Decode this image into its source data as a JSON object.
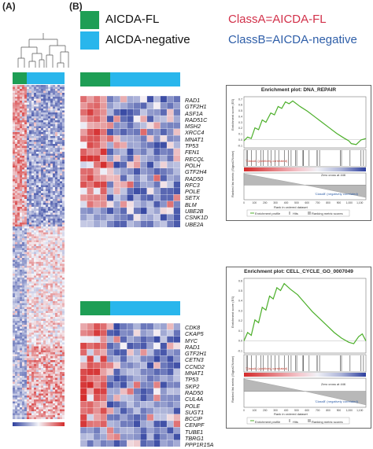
{
  "panels": {
    "a_label": "(A)",
    "b_label": "(B)"
  },
  "legend": {
    "fl_label": "AICDA-FL",
    "neg_label": "AICDA-negative",
    "fl_color": "#1e9e55",
    "neg_color": "#29b6ec"
  },
  "classes": {
    "class_a_label": "ClassA",
    "class_a_def": "=AICDA-FL",
    "class_a_color": "#d2314a",
    "class_b_label": "ClassB",
    "class_b_def": "=AICDA-negative",
    "class_b_color": "#2e5ea8"
  },
  "heatmap_top": {
    "genes": [
      "RAD1",
      "GTF2H1",
      "ASF1A",
      "RAD51C",
      "MSH2",
      "XRCC4",
      "MNAT1",
      "TP53",
      "FEN1",
      "RECQL",
      "POLH",
      "GTF2H4",
      "RAD50",
      "RFC3",
      "POLE",
      "SETX",
      "BLM",
      "UBE2B",
      "CSNK1D",
      "UBE2A"
    ]
  },
  "heatmap_bottom": {
    "genes": [
      "CDK8",
      "CKAP5",
      "MYC",
      "RAD1",
      "GTF2H1",
      "CETN3",
      "CCND2",
      "MNAT1",
      "TP53",
      "SKP2",
      "RAD50",
      "CUL4A",
      "POLE",
      "SUGT1",
      "BCCIP",
      "CENPF",
      "TUBE1",
      "TBRG1",
      "PPP1R15A"
    ]
  },
  "gsea_top": {
    "title": "Enrichment plot: DNA_REPAIR",
    "es_axis_label": "Enrichment score (ES)",
    "metric_axis_label": "Ranked list metric (Signal2Noise)",
    "x_axis_label": "Rank in ordered dataset",
    "pos_label": "'ClassA' (positively correlated)",
    "neg_label": "'ClassB' (negatively correlated)",
    "zero_cross": "Zero cross at 446",
    "legend_items": [
      "Enrichment profile",
      "Hits",
      "Ranking metric scores"
    ],
    "es_ticks": [
      "0.7",
      "0.6",
      "0.5",
      "0.4",
      "0.3",
      "0.2",
      "0.1",
      "0.0",
      "-0.1"
    ],
    "x_ticks": [
      "0",
      "100",
      "200",
      "300",
      "400",
      "500",
      "600",
      "700",
      "800",
      "900",
      "1,000",
      "1,100"
    ]
  },
  "gsea_bottom": {
    "title": "Enrichment plot: CELL_CYCLE_GO_0007049",
    "es_axis_label": "Enrichment score (ES)",
    "metric_axis_label": "Ranked list metric (Signal2Noise)",
    "x_axis_label": "Rank in ordered dataset",
    "pos_label": "'ClassA' (positively correlated)",
    "neg_label": "'ClassB' (negatively correlated)",
    "zero_cross": "Zero cross at 446",
    "legend_items": [
      "Enrichment profile",
      "Hits",
      "Ranking metric scores"
    ],
    "es_ticks": [
      "0.6",
      "0.5",
      "0.4",
      "0.3",
      "0.2",
      "0.1",
      "0.0",
      "-0.1"
    ],
    "x_ticks": [
      "0",
      "100",
      "200",
      "300",
      "400",
      "500",
      "600",
      "700",
      "800",
      "900",
      "1,000",
      "1,100"
    ]
  },
  "colors": {
    "heat_red": "#d42a2a",
    "heat_blue": "#2d3f9e",
    "es_line": "#4caf2a"
  }
}
